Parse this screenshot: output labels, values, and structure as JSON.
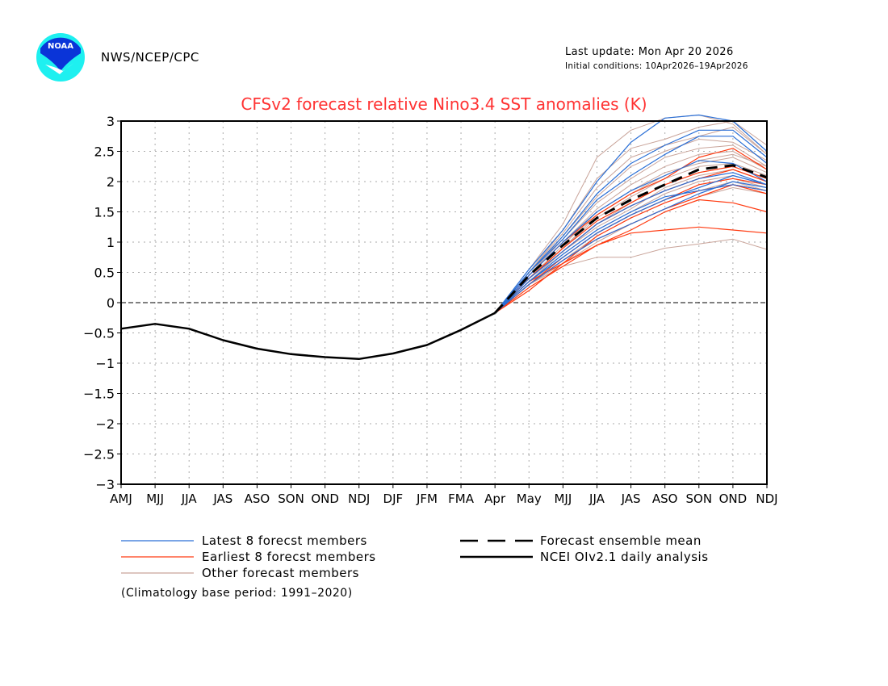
{
  "header": {
    "org": "NWS/NCEP/CPC",
    "last_update": "Last update: Mon Apr 20 2026",
    "initial_conditions": "Initial conditions: 10Apr2026–19Apr2026",
    "logo_text": "NOAA"
  },
  "colors": {
    "title": "#ff3333",
    "latest": "#2a6fd6",
    "earliest": "#ff3a10",
    "other": "#c9a49a",
    "mean": "#000000",
    "observed": "#000000",
    "logo_blue": "#0a34d8",
    "logo_cyan": "#1ef0f0"
  },
  "footnote": "(Climatology base period: 1991–2020)",
  "chart_data": {
    "type": "line",
    "title": "CFSv2 forecast relative Nino3.4 SST anomalies (K)",
    "xlabel": "",
    "ylabel": "",
    "categories": [
      "AMJ",
      "MJJ",
      "JJA",
      "JAS",
      "ASO",
      "SON",
      "OND",
      "NDJ",
      "DJF",
      "JFM",
      "FMA",
      "Apr",
      "May",
      "MJJ",
      "JJA",
      "JAS",
      "ASO",
      "SON",
      "OND",
      "NDJ"
    ],
    "ylim": [
      -3,
      3
    ],
    "yticks": [
      3,
      2.5,
      2,
      1.5,
      1,
      0.5,
      0,
      -0.5,
      -1,
      -1.5,
      -2,
      -2.5,
      -3
    ],
    "ytick_labels": [
      "3",
      "2.5",
      "2",
      "1.5",
      "1",
      "0.5",
      "0",
      "−0.5",
      "−1",
      "−1.5",
      "−2",
      "−2.5",
      "−3"
    ],
    "grid": true,
    "legend": [
      {
        "key": "latest",
        "label": "Latest 8 forecst members",
        "style": "solid"
      },
      {
        "key": "earliest",
        "label": "Earliest 8 forecst members",
        "style": "solid"
      },
      {
        "key": "other",
        "label": "Other forecast members",
        "style": "solid"
      },
      {
        "key": "mean",
        "label": "Forecast ensemble mean",
        "style": "dashed"
      },
      {
        "key": "observed",
        "label": "NCEI OIv2.1 daily analysis",
        "style": "solid"
      }
    ],
    "observed": {
      "name": "NCEI OIv2.1 daily analysis",
      "x_start": 0,
      "values": [
        -0.43,
        -0.35,
        -0.43,
        -0.62,
        -0.76,
        -0.85,
        -0.9,
        -0.93,
        -0.84,
        -0.7,
        -0.45,
        -0.17
      ]
    },
    "ensemble_mean": {
      "name": "Forecast ensemble mean",
      "x_start": 11,
      "values": [
        -0.17,
        0.45,
        0.95,
        1.4,
        1.7,
        1.95,
        2.2,
        2.27,
        2.07
      ]
    },
    "members_x_start": 11,
    "latest_members": [
      [
        -0.17,
        0.55,
        1.2,
        2.0,
        2.65,
        3.05,
        3.1,
        3.0,
        2.5
      ],
      [
        -0.17,
        0.5,
        1.1,
        1.8,
        2.3,
        2.6,
        2.85,
        2.85,
        2.4
      ],
      [
        -0.17,
        0.5,
        1.05,
        1.7,
        2.1,
        2.45,
        2.75,
        2.75,
        2.3
      ],
      [
        -0.17,
        0.45,
        1.0,
        1.5,
        1.85,
        2.1,
        2.35,
        2.3,
        2.0
      ],
      [
        -0.17,
        0.4,
        0.85,
        1.3,
        1.6,
        1.85,
        2.05,
        2.15,
        1.95
      ],
      [
        -0.17,
        0.35,
        0.75,
        1.15,
        1.45,
        1.7,
        1.9,
        2.1,
        1.95
      ],
      [
        -0.17,
        0.3,
        0.7,
        1.05,
        1.3,
        1.55,
        1.8,
        2.0,
        1.9
      ],
      [
        -0.17,
        0.35,
        0.8,
        1.2,
        1.5,
        1.75,
        1.85,
        1.95,
        1.85
      ]
    ],
    "earliest_members": [
      [
        -0.17,
        0.45,
        1.0,
        1.45,
        1.8,
        2.05,
        2.4,
        2.55,
        2.2
      ],
      [
        -0.17,
        0.4,
        0.9,
        1.35,
        1.65,
        1.95,
        2.15,
        2.25,
        2.05
      ],
      [
        -0.17,
        0.4,
        0.85,
        1.3,
        1.6,
        1.85,
        2.05,
        2.2,
        2.0
      ],
      [
        -0.17,
        0.3,
        0.75,
        1.15,
        1.45,
        1.7,
        1.95,
        2.05,
        1.95
      ],
      [
        -0.17,
        0.3,
        0.7,
        1.05,
        1.3,
        1.55,
        1.75,
        1.95,
        1.85
      ],
      [
        -0.17,
        0.35,
        0.65,
        0.95,
        1.2,
        1.5,
        1.7,
        1.65,
        1.5
      ],
      [
        -0.17,
        0.25,
        0.6,
        0.95,
        1.15,
        1.2,
        1.25,
        1.2,
        1.15
      ],
      [
        -0.17,
        0.2,
        0.65,
        1.1,
        1.4,
        1.65,
        1.85,
        1.95,
        1.8
      ]
    ],
    "other_members": [
      [
        -0.17,
        0.55,
        1.3,
        2.4,
        2.85,
        3.05,
        3.1,
        2.95,
        2.45
      ],
      [
        -0.17,
        0.5,
        1.2,
        2.05,
        2.55,
        2.7,
        2.9,
        3.0,
        2.6
      ],
      [
        -0.17,
        0.5,
        1.15,
        1.9,
        2.4,
        2.6,
        2.75,
        2.9,
        2.45
      ],
      [
        -0.17,
        0.45,
        1.1,
        1.75,
        2.25,
        2.5,
        2.7,
        2.65,
        2.35
      ],
      [
        -0.17,
        0.45,
        1.05,
        1.65,
        2.05,
        2.4,
        2.55,
        2.6,
        2.25
      ],
      [
        -0.17,
        0.45,
        1.0,
        1.55,
        1.95,
        2.25,
        2.45,
        2.5,
        2.2
      ],
      [
        -0.17,
        0.4,
        0.95,
        1.5,
        1.85,
        2.15,
        2.3,
        2.4,
        2.15
      ],
      [
        -0.17,
        0.4,
        0.9,
        1.4,
        1.75,
        2.05,
        2.25,
        2.3,
        2.1
      ],
      [
        -0.17,
        0.4,
        0.85,
        1.3,
        1.65,
        1.95,
        2.15,
        2.25,
        2.05
      ],
      [
        -0.17,
        0.35,
        0.85,
        1.25,
        1.55,
        1.9,
        2.1,
        2.2,
        2.0
      ],
      [
        -0.17,
        0.35,
        0.8,
        1.2,
        1.5,
        1.8,
        2.0,
        2.1,
        1.95
      ],
      [
        -0.17,
        0.35,
        0.75,
        1.15,
        1.45,
        1.7,
        1.95,
        2.05,
        1.9
      ],
      [
        -0.17,
        0.3,
        0.7,
        1.1,
        1.4,
        1.65,
        1.85,
        2.0,
        1.85
      ],
      [
        -0.17,
        0.3,
        0.65,
        1.0,
        1.3,
        1.55,
        1.75,
        1.9,
        1.8
      ],
      [
        -0.17,
        0.3,
        0.6,
        0.75,
        0.75,
        0.9,
        0.97,
        1.05,
        0.88
      ],
      [
        -0.17,
        0.4,
        0.9,
        1.45,
        1.8,
        2.1,
        2.35,
        2.45,
        2.25
      ]
    ]
  }
}
